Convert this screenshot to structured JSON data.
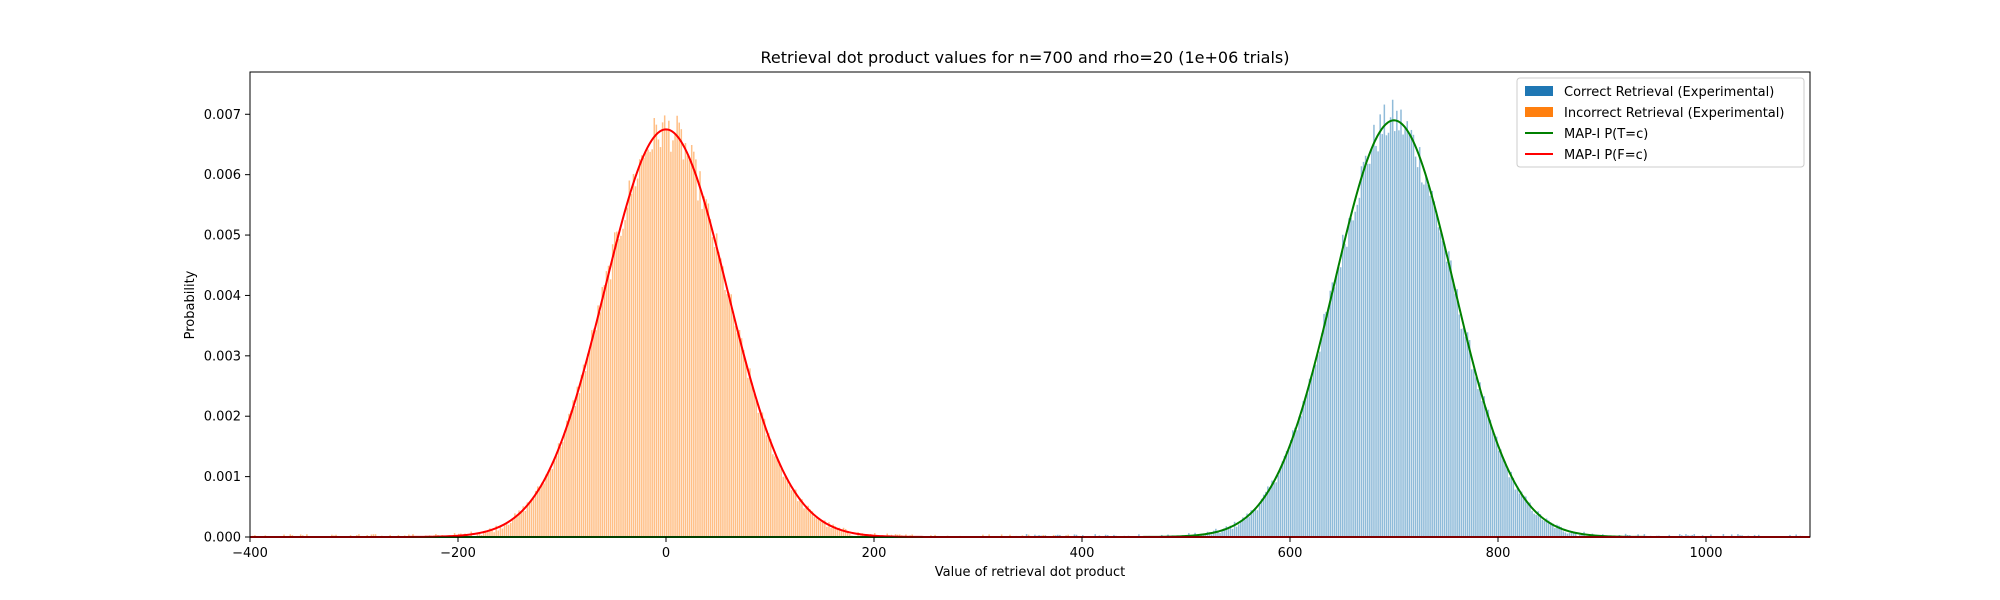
{
  "chart_data": {
    "type": "histogram",
    "title": "Retrieval dot product values for n=700 and rho=20 (1e+06 trials)",
    "xlabel": "Value of retrieval dot product",
    "ylabel": "Probability",
    "xlim": [
      -400,
      1100
    ],
    "ylim": [
      0,
      0.0077
    ],
    "x_ticks": [
      -400,
      -200,
      0,
      200,
      400,
      600,
      800,
      1000
    ],
    "x_tick_labels": [
      "−400",
      "−200",
      "0",
      "200",
      "400",
      "600",
      "800",
      "1000"
    ],
    "y_ticks": [
      0,
      0.001,
      0.002,
      0.003,
      0.004,
      0.005,
      0.006,
      0.007
    ],
    "y_tick_labels": [
      "0.000",
      "0.001",
      "0.002",
      "0.003",
      "0.004",
      "0.005",
      "0.006",
      "0.007"
    ],
    "grid": false,
    "legend": {
      "placement": "top-right",
      "entries": [
        {
          "label": "Correct Retrieval (Experimental)",
          "kind": "patch",
          "color": "#1f77b4"
        },
        {
          "label": "Incorrect Retrieval (Experimental)",
          "kind": "patch",
          "color": "#ff7f0e"
        },
        {
          "label": "MAP-I P(T=c)",
          "kind": "line",
          "color": "#008000"
        },
        {
          "label": "MAP-I P(F=c)",
          "kind": "line",
          "color": "#ff0000"
        }
      ]
    },
    "series": [
      {
        "name": "Correct Retrieval (Experimental)",
        "kind": "histogram",
        "color": "#1f77b4",
        "alpha": 0.5,
        "bin_width": 2,
        "range": [
          340,
          1100
        ],
        "mean": 700,
        "std": 57.5,
        "peak": 0.0069
      },
      {
        "name": "Incorrect Retrieval (Experimental)",
        "kind": "histogram",
        "color": "#ff7f0e",
        "alpha": 0.5,
        "bin_width": 2,
        "range": [
          -400,
          400
        ],
        "mean": 0,
        "std": 59,
        "peak": 0.00675
      },
      {
        "name": "MAP-I P(T=c)",
        "kind": "line",
        "color": "#008000",
        "mean": 700,
        "std": 57.5,
        "peak": 0.0069
      },
      {
        "name": "MAP-I P(F=c)",
        "kind": "line",
        "color": "#ff0000",
        "mean": 0,
        "std": 59,
        "peak": 0.00675
      }
    ]
  }
}
